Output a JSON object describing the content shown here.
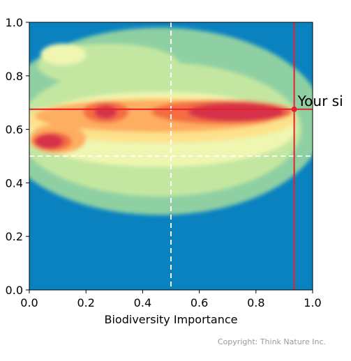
{
  "chart_data": {
    "type": "heatmap",
    "title": "",
    "xlabel": "Biodiversity Importance",
    "ylabel": "",
    "xlim": [
      0.0,
      1.0
    ],
    "ylim": [
      0.0,
      1.0
    ],
    "x_ticks": [
      "0.0",
      "0.2",
      "0.4",
      "0.6",
      "0.8",
      "1.0"
    ],
    "y_ticks": [
      "0.0",
      "0.2",
      "0.4",
      "0.6",
      "0.8",
      "1.0"
    ],
    "background_color": "#0a82c0",
    "colormap": [
      "#0a82c0",
      "#8fd0a3",
      "#c3e7a1",
      "#eef6b0",
      "#fde18b",
      "#fdae61",
      "#f46d43",
      "#d6304a"
    ],
    "reference_lines": {
      "x": 0.5,
      "y": 0.5,
      "style": "dashed",
      "color": "#ffffff"
    },
    "marker": {
      "x": 0.935,
      "y": 0.675,
      "label": "Your si",
      "color": "#e8202b"
    },
    "density_blobs": [
      {
        "cx": 0.46,
        "cy": 0.63,
        "rx": 0.58,
        "ry": 0.35,
        "level": 1
      },
      {
        "cx": 0.46,
        "cy": 0.6,
        "rx": 0.5,
        "ry": 0.25,
        "level": 2
      },
      {
        "cx": 0.28,
        "cy": 0.84,
        "rx": 0.25,
        "ry": 0.08,
        "level": 2
      },
      {
        "cx": 0.12,
        "cy": 0.88,
        "rx": 0.08,
        "ry": 0.04,
        "level": 3
      },
      {
        "cx": 0.46,
        "cy": 0.6,
        "rx": 0.48,
        "ry": 0.14,
        "level": 3
      },
      {
        "cx": 0.46,
        "cy": 0.635,
        "rx": 0.48,
        "ry": 0.085,
        "level": 4
      },
      {
        "cx": 0.45,
        "cy": 0.65,
        "rx": 0.43,
        "ry": 0.06,
        "level": 5
      },
      {
        "cx": 0.1,
        "cy": 0.565,
        "rx": 0.1,
        "ry": 0.055,
        "level": 5
      },
      {
        "cx": 0.68,
        "cy": 0.665,
        "rx": 0.25,
        "ry": 0.045,
        "level": 6
      },
      {
        "cx": 0.27,
        "cy": 0.665,
        "rx": 0.08,
        "ry": 0.04,
        "level": 6
      },
      {
        "cx": 0.08,
        "cy": 0.555,
        "rx": 0.07,
        "ry": 0.035,
        "level": 6
      },
      {
        "cx": 0.73,
        "cy": 0.665,
        "rx": 0.17,
        "ry": 0.035,
        "level": 7
      },
      {
        "cx": 0.27,
        "cy": 0.665,
        "rx": 0.04,
        "ry": 0.025,
        "level": 7
      },
      {
        "cx": 0.07,
        "cy": 0.555,
        "rx": 0.05,
        "ry": 0.028,
        "level": 7
      }
    ]
  },
  "copyright": "Copyright: Think Nature Inc."
}
